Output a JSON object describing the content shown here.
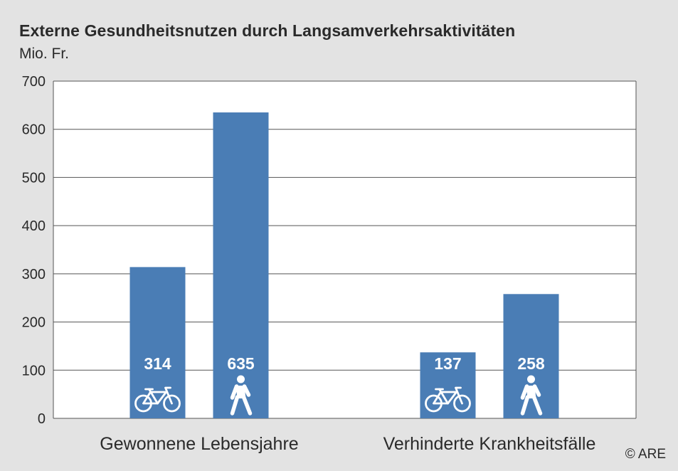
{
  "chart_data": {
    "type": "bar",
    "title": "Externe Gesundheitsnutzen durch Langsamverkehrsaktivitäten",
    "ylabel": "Mio. Fr.",
    "xlabel": "",
    "ylim": [
      0,
      700
    ],
    "yticks": [
      0,
      100,
      200,
      300,
      400,
      500,
      600,
      700
    ],
    "grid": true,
    "categories": [
      "Gewonnene Lebensjahre",
      "Verhinderte Krankheitsfälle"
    ],
    "series": [
      {
        "values": [
          314,
          137
        ],
        "icon": "bicycle-icon",
        "color": "#4a7db5"
      },
      {
        "values": [
          635,
          258
        ],
        "icon": "pedestrian-icon",
        "color": "#4a7db5"
      }
    ]
  },
  "credit": "© ARE",
  "colors": {
    "background": "#e3e3e3",
    "plot": "#ffffff",
    "bar": "#4a7db5",
    "grid": "#555555"
  }
}
